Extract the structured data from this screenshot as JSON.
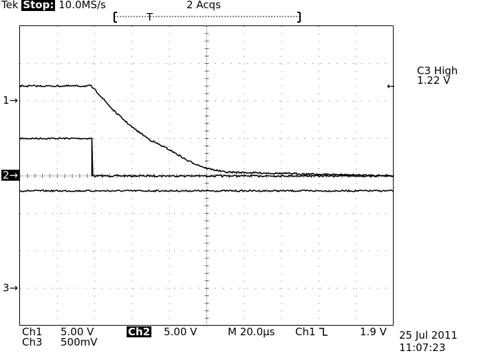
{
  "header": {
    "brand": "Tek",
    "run_state": "Stop:",
    "sample_rate": "10.0MS/s",
    "acquisitions": "2 Acqs"
  },
  "markers": {
    "ch1": "1→",
    "ch2": "2→",
    "ch3": "3→",
    "trigger_position": "T",
    "trigger_level": "←"
  },
  "right_panel": {
    "title": "C3 High",
    "value": "1.22 V"
  },
  "footer": {
    "ch1_label": "Ch1",
    "ch1_scale": "5.00 V",
    "ch2_label": "Ch2",
    "ch2_scale": "5.00 V",
    "ch3_label": "Ch3",
    "ch3_scale": "500mV",
    "timebase": "M 20.0µs",
    "trigger_source": "Ch1",
    "trigger_slope_icon": "falling-edge",
    "trigger_level": "1.9 V",
    "date": "25 Jul 2011",
    "time": "11:07:23"
  },
  "chart_data": {
    "type": "line",
    "series": [
      {
        "label": "Ch1",
        "x_us": [
          0,
          38.5,
          38.5,
          200
        ],
        "y_div": [
          1.0,
          1.0,
          0.0,
          0.0
        ]
      },
      {
        "label": "Ch2",
        "x_us": [
          0,
          200
        ],
        "y_div": [
          -0.4,
          -0.4
        ]
      },
      {
        "label": "Ch3",
        "x_us": [
          0,
          38,
          42,
          50,
          60,
          70,
          80,
          90,
          100,
          110,
          200
        ],
        "y_div": [
          2.4,
          2.4,
          2.2,
          1.75,
          1.3,
          0.95,
          0.7,
          0.4,
          0.2,
          0.1,
          0.0
        ]
      }
    ],
    "grid": true,
    "xlim_us": [
      0,
      200
    ],
    "ylim_div": [
      -4,
      4
    ]
  },
  "colors": {
    "trace": "#000000",
    "grid_dot": "#555555",
    "background": "#ffffff"
  }
}
